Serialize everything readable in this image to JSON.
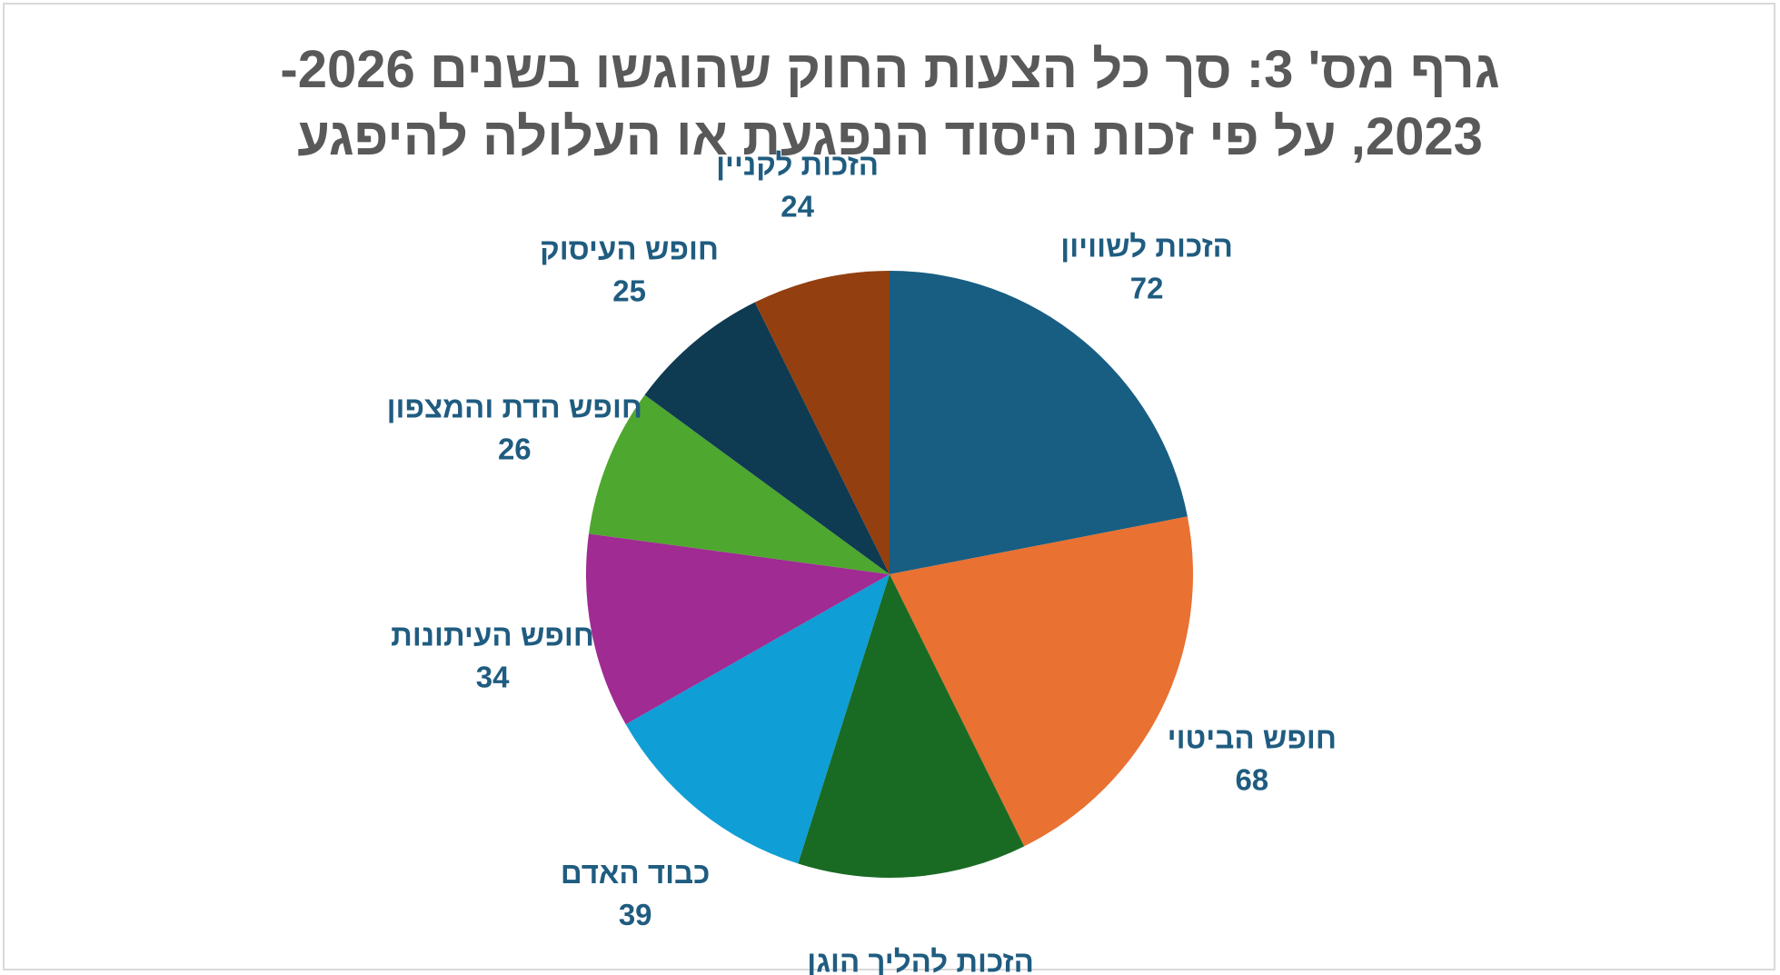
{
  "chart_data": {
    "type": "pie",
    "title": {
      "line1": "גרף מס' 3: סך כל הצעות החוק שהוגשו בשנים 2026-",
      "line2": "2023, על פי זכות היסוד הנפגעת או העלולה להיפגע"
    },
    "slices": [
      {
        "label": "הזכות לשוויון",
        "value": 72,
        "color": "#175e82"
      },
      {
        "label": "חופש הביטוי",
        "value": 68,
        "color": "#e97132"
      },
      {
        "label": "הזכות להליך הוגן",
        "value": 40,
        "color": "#196b24"
      },
      {
        "label": "כבוד האדם",
        "value": 39,
        "color": "#0f9ed5"
      },
      {
        "label": "חופש העיתונות",
        "value": 34,
        "color": "#a02b93"
      },
      {
        "label": "חופש הדת והמצפון",
        "value": 26,
        "color": "#4ea72e"
      },
      {
        "label": "חופש העיסוק",
        "value": 25,
        "color": "#0e3a52"
      },
      {
        "label": "הזכות לקניין",
        "value": 24,
        "color": "#933f10"
      }
    ],
    "legend": "none",
    "data_labels": "category-and-value, outside"
  }
}
